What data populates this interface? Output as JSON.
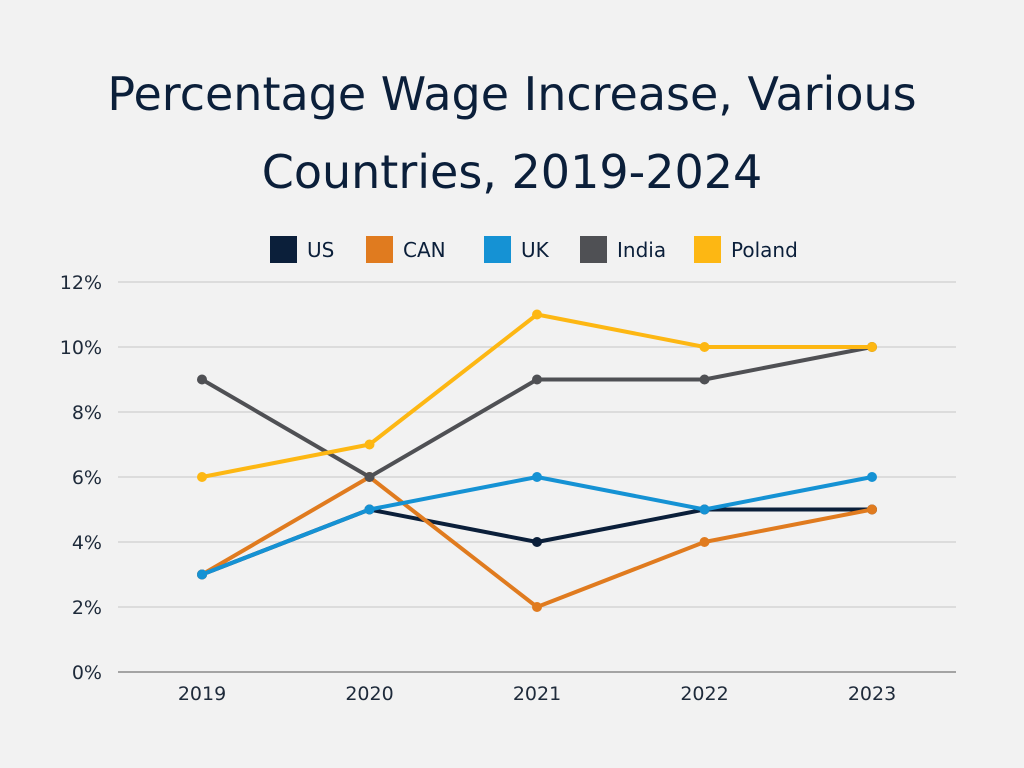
{
  "chart_data": {
    "type": "line",
    "title": "Percentage Wage Increase, Various Countries, 2019-2024",
    "title_lines": [
      "Percentage Wage Increase, Various",
      "Countries, 2019-2024"
    ],
    "categories": [
      "2019",
      "2020",
      "2021",
      "2022",
      "2023"
    ],
    "y_unit": "%",
    "ylim": [
      0,
      12
    ],
    "y_ticks": [
      0,
      2,
      4,
      6,
      8,
      10,
      12
    ],
    "y_tick_labels": [
      "0%",
      "2%",
      "4%",
      "6%",
      "8%",
      "10%",
      "12%"
    ],
    "grid": true,
    "legend_placement": "top-center",
    "series": [
      {
        "name": "US",
        "color": "#0b1f3a",
        "values": [
          3,
          5,
          4,
          5,
          5
        ]
      },
      {
        "name": "CAN",
        "color": "#e07b1f",
        "values": [
          3,
          6,
          2,
          4,
          5
        ]
      },
      {
        "name": "UK",
        "color": "#1592d4",
        "values": [
          3,
          5,
          6,
          5,
          6
        ]
      },
      {
        "name": "India",
        "color": "#4f5054",
        "values": [
          9,
          6,
          9,
          9,
          10
        ]
      },
      {
        "name": "Poland",
        "color": "#fdb713",
        "values": [
          6,
          7,
          11,
          10,
          10
        ]
      }
    ]
  }
}
